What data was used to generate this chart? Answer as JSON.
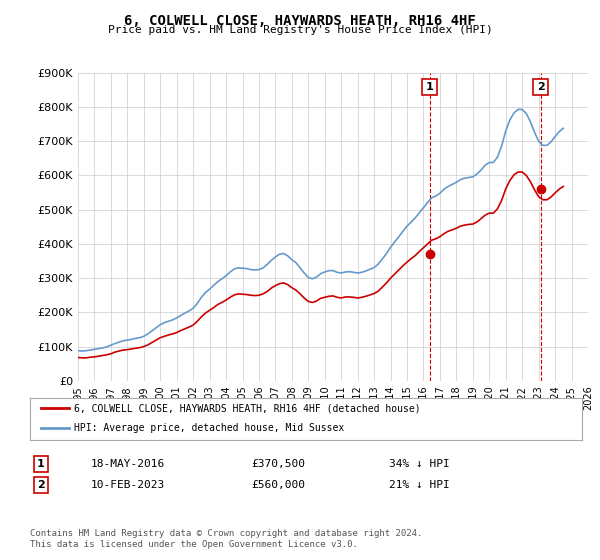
{
  "title": "6, COLWELL CLOSE, HAYWARDS HEATH, RH16 4HF",
  "subtitle": "Price paid vs. HM Land Registry's House Price Index (HPI)",
  "ylabel": "",
  "xlabel": "",
  "ylim": [
    0,
    900000
  ],
  "yticks": [
    0,
    100000,
    200000,
    300000,
    400000,
    500000,
    600000,
    700000,
    800000,
    900000
  ],
  "ytick_labels": [
    "£0",
    "£100K",
    "£200K",
    "£300K",
    "£400K",
    "£500K",
    "£600K",
    "£700K",
    "£800K",
    "£900K"
  ],
  "hpi_color": "#6699cc",
  "price_color": "#cc0000",
  "marker1_color": "#cc0000",
  "marker2_color": "#cc0000",
  "vline_color": "#cc0000",
  "grid_color": "#cccccc",
  "background_color": "#ffffff",
  "legend_label_red": "6, COLWELL CLOSE, HAYWARDS HEATH, RH16 4HF (detached house)",
  "legend_label_blue": "HPI: Average price, detached house, Mid Sussex",
  "transaction1_label": "1",
  "transaction1_date": "18-MAY-2016",
  "transaction1_price": "£370,500",
  "transaction1_info": "34% ↓ HPI",
  "transaction1_year": 2016.37,
  "transaction1_value": 370500,
  "transaction2_label": "2",
  "transaction2_date": "10-FEB-2023",
  "transaction2_price": "£560,000",
  "transaction2_info": "21% ↓ HPI",
  "transaction2_year": 2023.12,
  "transaction2_value": 560000,
  "footer": "Contains HM Land Registry data © Crown copyright and database right 2024.\nThis data is licensed under the Open Government Licence v3.0.",
  "hpi_years": [
    1995.0,
    1995.25,
    1995.5,
    1995.75,
    1996.0,
    1996.25,
    1996.5,
    1996.75,
    1997.0,
    1997.25,
    1997.5,
    1997.75,
    1998.0,
    1998.25,
    1998.5,
    1998.75,
    1999.0,
    1999.25,
    1999.5,
    1999.75,
    2000.0,
    2000.25,
    2000.5,
    2000.75,
    2001.0,
    2001.25,
    2001.5,
    2001.75,
    2002.0,
    2002.25,
    2002.5,
    2002.75,
    2003.0,
    2003.25,
    2003.5,
    2003.75,
    2004.0,
    2004.25,
    2004.5,
    2004.75,
    2005.0,
    2005.25,
    2005.5,
    2005.75,
    2006.0,
    2006.25,
    2006.5,
    2006.75,
    2007.0,
    2007.25,
    2007.5,
    2007.75,
    2008.0,
    2008.25,
    2008.5,
    2008.75,
    2009.0,
    2009.25,
    2009.5,
    2009.75,
    2010.0,
    2010.25,
    2010.5,
    2010.75,
    2011.0,
    2011.25,
    2011.5,
    2011.75,
    2012.0,
    2012.25,
    2012.5,
    2012.75,
    2013.0,
    2013.25,
    2013.5,
    2013.75,
    2014.0,
    2014.25,
    2014.5,
    2014.75,
    2015.0,
    2015.25,
    2015.5,
    2015.75,
    2016.0,
    2016.25,
    2016.5,
    2016.75,
    2017.0,
    2017.25,
    2017.5,
    2017.75,
    2018.0,
    2018.25,
    2018.5,
    2018.75,
    2019.0,
    2019.25,
    2019.5,
    2019.75,
    2020.0,
    2020.25,
    2020.5,
    2020.75,
    2021.0,
    2021.25,
    2021.5,
    2021.75,
    2022.0,
    2022.25,
    2022.5,
    2022.75,
    2023.0,
    2023.25,
    2023.5,
    2023.75,
    2024.0,
    2024.25,
    2024.5
  ],
  "hpi_values": [
    88000,
    87000,
    88000,
    90000,
    92000,
    94000,
    96000,
    99000,
    104000,
    109000,
    113000,
    117000,
    119000,
    121000,
    124000,
    126000,
    130000,
    137000,
    146000,
    155000,
    164000,
    170000,
    174000,
    178000,
    184000,
    191000,
    198000,
    204000,
    212000,
    226000,
    244000,
    258000,
    268000,
    279000,
    290000,
    298000,
    307000,
    318000,
    327000,
    330000,
    329000,
    328000,
    325000,
    324000,
    325000,
    330000,
    340000,
    352000,
    362000,
    370000,
    372000,
    365000,
    354000,
    345000,
    330000,
    315000,
    302000,
    298000,
    303000,
    313000,
    318000,
    322000,
    322000,
    317000,
    315000,
    318000,
    319000,
    317000,
    315000,
    317000,
    321000,
    326000,
    331000,
    341000,
    356000,
    372000,
    390000,
    406000,
    421000,
    437000,
    452000,
    464000,
    476000,
    491000,
    506000,
    521000,
    535000,
    540000,
    548000,
    560000,
    568000,
    574000,
    580000,
    588000,
    592000,
    594000,
    596000,
    604000,
    616000,
    630000,
    638000,
    638000,
    654000,
    686000,
    730000,
    762000,
    783000,
    793000,
    793000,
    781000,
    757000,
    726000,
    700000,
    688000,
    688000,
    698000,
    714000,
    728000,
    738000
  ],
  "red_years": [
    1995.0,
    1995.25,
    1995.5,
    1995.75,
    1996.0,
    1996.25,
    1996.5,
    1996.75,
    1997.0,
    1997.25,
    1997.5,
    1997.75,
    1998.0,
    1998.25,
    1998.5,
    1998.75,
    1999.0,
    1999.25,
    1999.5,
    1999.75,
    2000.0,
    2000.25,
    2000.5,
    2000.75,
    2001.0,
    2001.25,
    2001.5,
    2001.75,
    2002.0,
    2002.25,
    2002.5,
    2002.75,
    2003.0,
    2003.25,
    2003.5,
    2003.75,
    2004.0,
    2004.25,
    2004.5,
    2004.75,
    2005.0,
    2005.25,
    2005.5,
    2005.75,
    2006.0,
    2006.25,
    2006.5,
    2006.75,
    2007.0,
    2007.25,
    2007.5,
    2007.75,
    2008.0,
    2008.25,
    2008.5,
    2008.75,
    2009.0,
    2009.25,
    2009.5,
    2009.75,
    2010.0,
    2010.25,
    2010.5,
    2010.75,
    2011.0,
    2011.25,
    2011.5,
    2011.75,
    2012.0,
    2012.25,
    2012.5,
    2012.75,
    2013.0,
    2013.25,
    2013.5,
    2013.75,
    2014.0,
    2014.25,
    2014.5,
    2014.75,
    2015.0,
    2015.25,
    2015.5,
    2015.75,
    2016.0,
    2016.25,
    2016.5,
    2016.75,
    2017.0,
    2017.25,
    2017.5,
    2017.75,
    2018.0,
    2018.25,
    2018.5,
    2018.75,
    2019.0,
    2019.25,
    2019.5,
    2019.75,
    2020.0,
    2020.25,
    2020.5,
    2020.75,
    2021.0,
    2021.25,
    2021.5,
    2021.75,
    2022.0,
    2022.25,
    2022.5,
    2022.75,
    2023.0,
    2023.25,
    2023.5,
    2023.75,
    2024.0,
    2024.25,
    2024.5
  ],
  "red_values": [
    68000,
    67000,
    67000,
    69000,
    70000,
    72000,
    74000,
    76000,
    79000,
    84000,
    87000,
    90000,
    91000,
    93000,
    95000,
    97000,
    100000,
    105000,
    112000,
    119000,
    126000,
    130000,
    134000,
    137000,
    141000,
    147000,
    152000,
    157000,
    163000,
    174000,
    187000,
    198000,
    206000,
    214000,
    223000,
    229000,
    236000,
    244000,
    251000,
    254000,
    253000,
    252000,
    250000,
    249000,
    250000,
    254000,
    261000,
    271000,
    278000,
    284000,
    286000,
    281000,
    272000,
    265000,
    254000,
    242000,
    232000,
    229000,
    233000,
    241000,
    244000,
    247000,
    248000,
    244000,
    242000,
    245000,
    245000,
    244000,
    242000,
    244000,
    247000,
    251000,
    255000,
    262000,
    274000,
    286000,
    300000,
    312000,
    324000,
    336000,
    347000,
    357000,
    366000,
    378000,
    389000,
    400000,
    411000,
    415000,
    421000,
    430000,
    437000,
    441000,
    446000,
    452000,
    455000,
    457000,
    458000,
    464000,
    474000,
    484000,
    490000,
    490000,
    503000,
    527000,
    561000,
    585000,
    602000,
    610000,
    610000,
    600000,
    582000,
    558000,
    538000,
    529000,
    529000,
    537000,
    549000,
    560000,
    568000
  ]
}
